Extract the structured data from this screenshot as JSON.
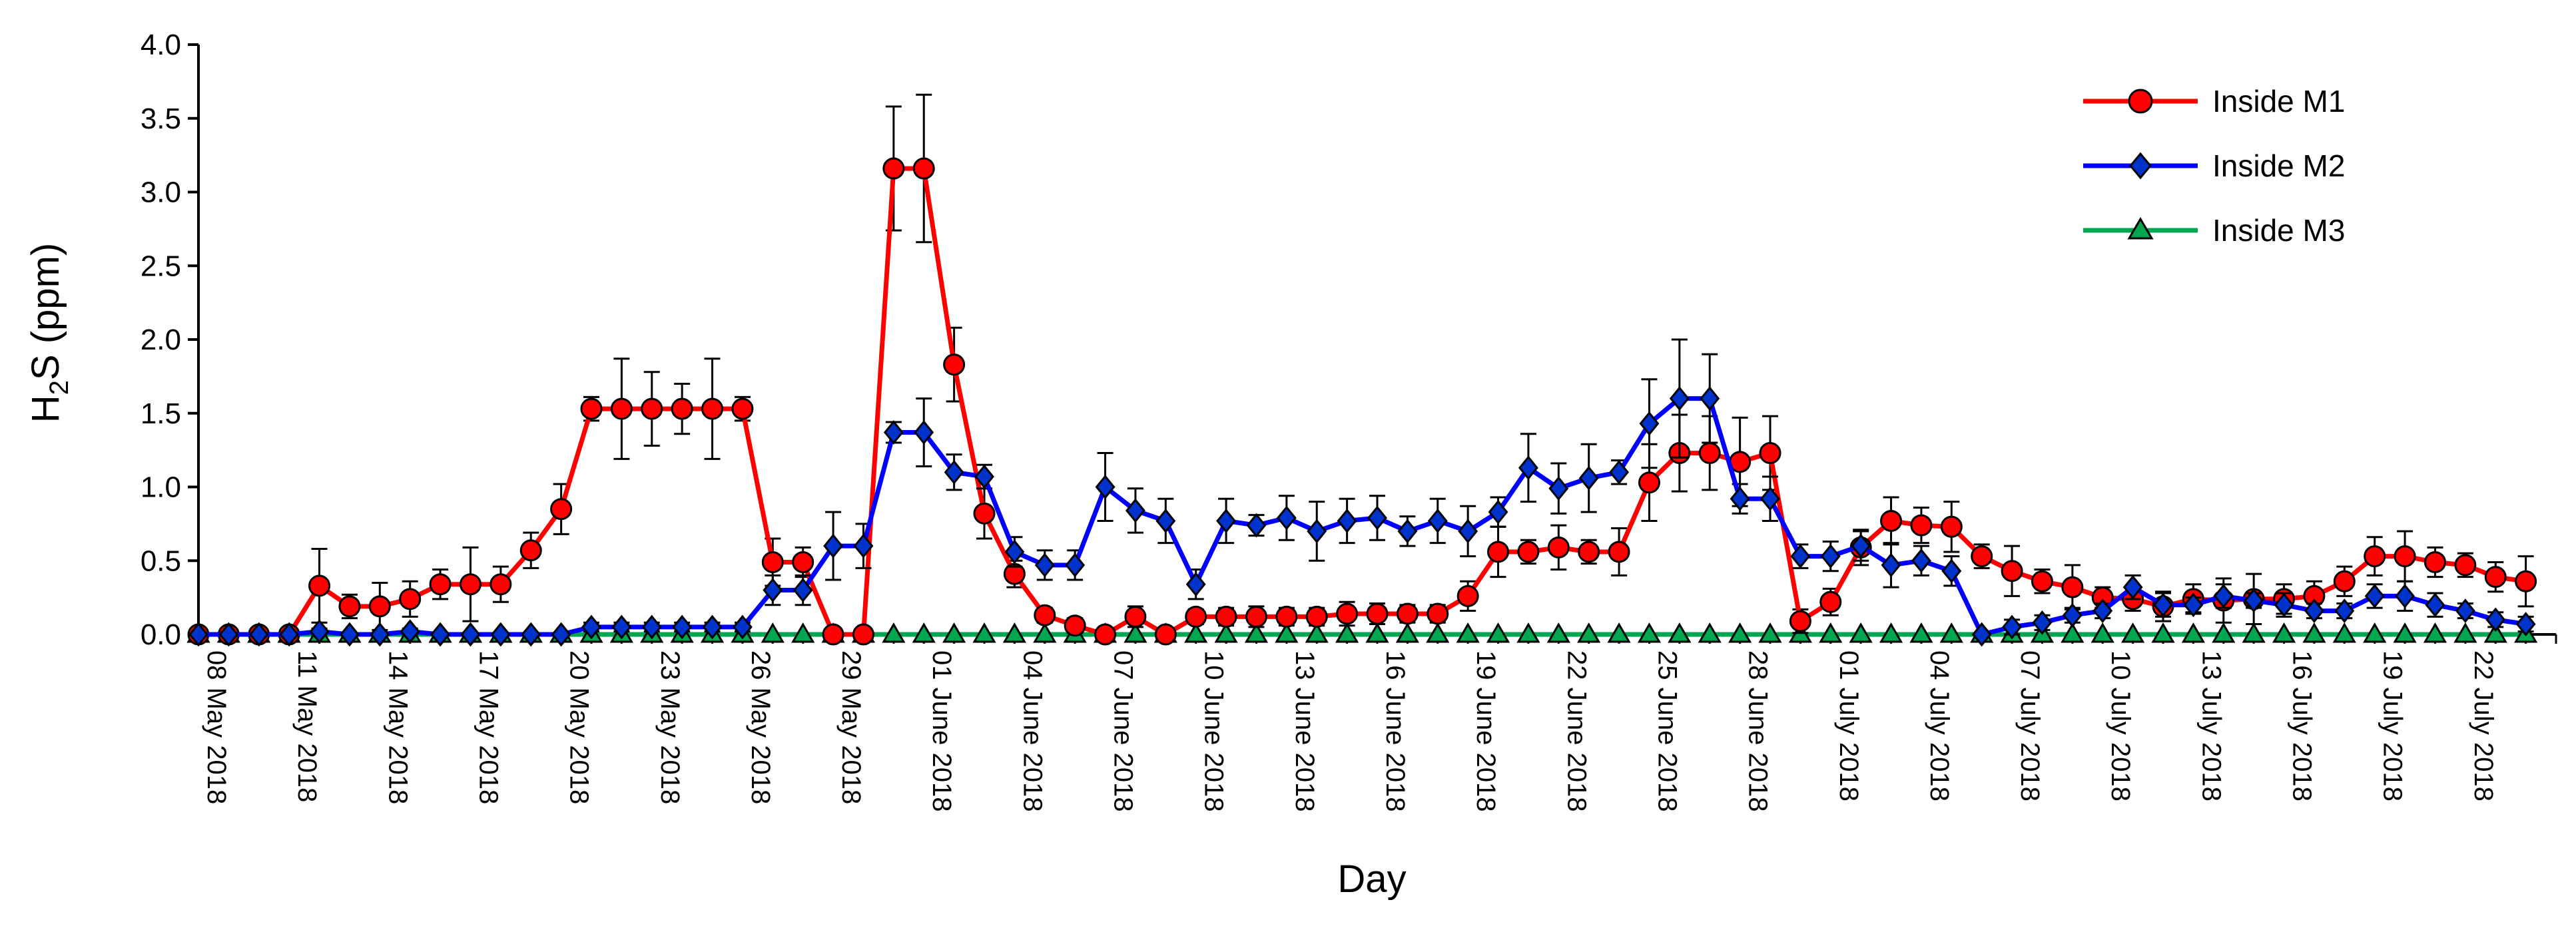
{
  "chart_data": {
    "type": "line",
    "xlabel": "Day",
    "ylabel": {
      "prefix": "H",
      "subscript": "2",
      "suffix": "S (ppm)"
    },
    "ylim": [
      0,
      4.0
    ],
    "yticks": [
      "0.0",
      "0.5",
      "1.0",
      "1.5",
      "2.0",
      "2.5",
      "3.0",
      "3.5",
      "4.0"
    ],
    "xtick_labels": [
      "08 May 2018",
      "11 May 2018",
      "14 May 2018",
      "17 May 2018",
      "20 May 2018",
      "23 May 2018",
      "26 May 2018",
      "29 May 2018",
      "01 June 2018",
      "04 June 2018",
      "07 June 2018",
      "10 June 2018",
      "13 June 2018",
      "16 June 2018",
      "19 June 2018",
      "22 June 2018",
      "25 June 2018",
      "28 June 2018",
      "01 July 2018",
      "04 July 2018",
      "07 July 2018",
      "10 July 2018",
      "13 July 2018",
      "16 July 2018",
      "19 July 2018",
      "22 July 2018"
    ],
    "x_days": 78,
    "grid": false,
    "legend_position": "top-right",
    "series": [
      {
        "name": "Inside M1",
        "color": "#ff0000",
        "marker_fill": "#ff0000",
        "marker": "circle",
        "values": [
          0,
          0,
          0,
          0,
          0.33,
          0.19,
          0.19,
          0.24,
          0.34,
          0.34,
          0.34,
          0.57,
          0.85,
          1.53,
          1.53,
          1.53,
          1.53,
          1.53,
          1.53,
          0.49,
          0.49,
          0,
          0,
          3.16,
          3.16,
          1.83,
          0.82,
          0.41,
          0.13,
          0.06,
          0,
          0.12,
          0,
          0.12,
          0.12,
          0.12,
          0.12,
          0.12,
          0.14,
          0.14,
          0.14,
          0.14,
          0.26,
          0.56,
          0.56,
          0.59,
          0.56,
          0.56,
          1.03,
          1.23,
          1.23,
          1.17,
          1.23,
          0.09,
          0.22,
          0.59,
          0.77,
          0.74,
          0.73,
          0.53,
          0.43,
          0.36,
          0.32,
          0.25,
          0.24,
          0.19,
          0.24,
          0.23,
          0.24,
          0.24,
          0.26,
          0.36,
          0.53,
          0.53,
          0.49,
          0.47,
          0.39,
          0.36
        ],
        "errors": [
          0,
          0,
          0,
          0,
          0.25,
          0.08,
          0.16,
          0.12,
          0.1,
          0.25,
          0.12,
          0.12,
          0.17,
          0.08,
          0.34,
          0.25,
          0.17,
          0.34,
          0.08,
          0.16,
          0.1,
          0,
          0,
          0.42,
          0.5,
          0.25,
          0.17,
          0.09,
          0.05,
          0.05,
          0,
          0.07,
          0,
          0.05,
          0.06,
          0.07,
          0.06,
          0.06,
          0.08,
          0.07,
          0.06,
          0.06,
          0.1,
          0.17,
          0.08,
          0.15,
          0.08,
          0.16,
          0.26,
          0.26,
          0.25,
          0.3,
          0.25,
          0.08,
          0.09,
          0.12,
          0.16,
          0.12,
          0.17,
          0.08,
          0.17,
          0.08,
          0.15,
          0.07,
          0.08,
          0.1,
          0.1,
          0.15,
          0.17,
          0.1,
          0.1,
          0.1,
          0.13,
          0.17,
          0.1,
          0.08,
          0.1,
          0.17
        ]
      },
      {
        "name": "Inside M2",
        "color": "#0000ff",
        "marker_fill": "#0033cc",
        "marker": "diamond",
        "values": [
          0,
          0,
          0,
          0,
          0.02,
          0,
          0,
          0.02,
          0,
          0,
          0,
          0,
          0,
          0.05,
          0.05,
          0.05,
          0.05,
          0.05,
          0.05,
          0.3,
          0.3,
          0.6,
          0.6,
          1.37,
          1.37,
          1.1,
          1.07,
          0.56,
          0.47,
          0.47,
          1.0,
          0.84,
          0.77,
          0.34,
          0.77,
          0.74,
          0.79,
          0.7,
          0.77,
          0.79,
          0.7,
          0.77,
          0.7,
          0.83,
          1.13,
          0.99,
          1.06,
          1.1,
          1.43,
          1.6,
          1.6,
          0.92,
          0.92,
          0.53,
          0.53,
          0.6,
          0.47,
          0.5,
          0.43,
          0,
          0.05,
          0.08,
          0.13,
          0.16,
          0.32,
          0.2,
          0.2,
          0.26,
          0.23,
          0.2,
          0.16,
          0.16,
          0.26,
          0.26,
          0.2,
          0.16,
          0.1,
          0.07
        ],
        "errors": [
          0,
          0,
          0,
          0,
          0.02,
          0,
          0,
          0.02,
          0,
          0,
          0,
          0,
          0,
          0.03,
          0.03,
          0.03,
          0.03,
          0.03,
          0.03,
          0.1,
          0.1,
          0.23,
          0.15,
          0.07,
          0.23,
          0.12,
          0.08,
          0.1,
          0.1,
          0.1,
          0.23,
          0.15,
          0.15,
          0.1,
          0.15,
          0.07,
          0.15,
          0.2,
          0.15,
          0.15,
          0.1,
          0.15,
          0.17,
          0.1,
          0.23,
          0.17,
          0.23,
          0.08,
          0.3,
          0.4,
          0.3,
          0.1,
          0.15,
          0.08,
          0.1,
          0.1,
          0.15,
          0.1,
          0.1,
          0,
          0.05,
          0.05,
          0.05,
          0.05,
          0.08,
          0.08,
          0.05,
          0.08,
          0.05,
          0.08,
          0.05,
          0.05,
          0.08,
          0.1,
          0.08,
          0.05,
          0.05,
          0.05
        ]
      },
      {
        "name": "Inside M3",
        "color": "#00a650",
        "marker_fill": "#00a650",
        "marker": "triangle",
        "values": [
          0,
          0,
          0,
          0,
          0,
          0,
          0,
          0,
          0,
          0,
          0,
          0,
          0,
          0,
          0,
          0,
          0,
          0,
          0,
          0,
          0,
          0,
          0,
          0,
          0,
          0,
          0,
          0,
          0,
          0,
          0,
          0,
          0,
          0,
          0,
          0,
          0,
          0,
          0,
          0,
          0,
          0,
          0,
          0,
          0,
          0,
          0,
          0,
          0,
          0,
          0,
          0,
          0,
          0,
          0,
          0,
          0,
          0,
          0,
          0,
          0,
          0,
          0,
          0,
          0,
          0,
          0,
          0,
          0,
          0,
          0,
          0,
          0,
          0,
          0,
          0,
          0,
          0
        ],
        "errors": []
      }
    ]
  }
}
